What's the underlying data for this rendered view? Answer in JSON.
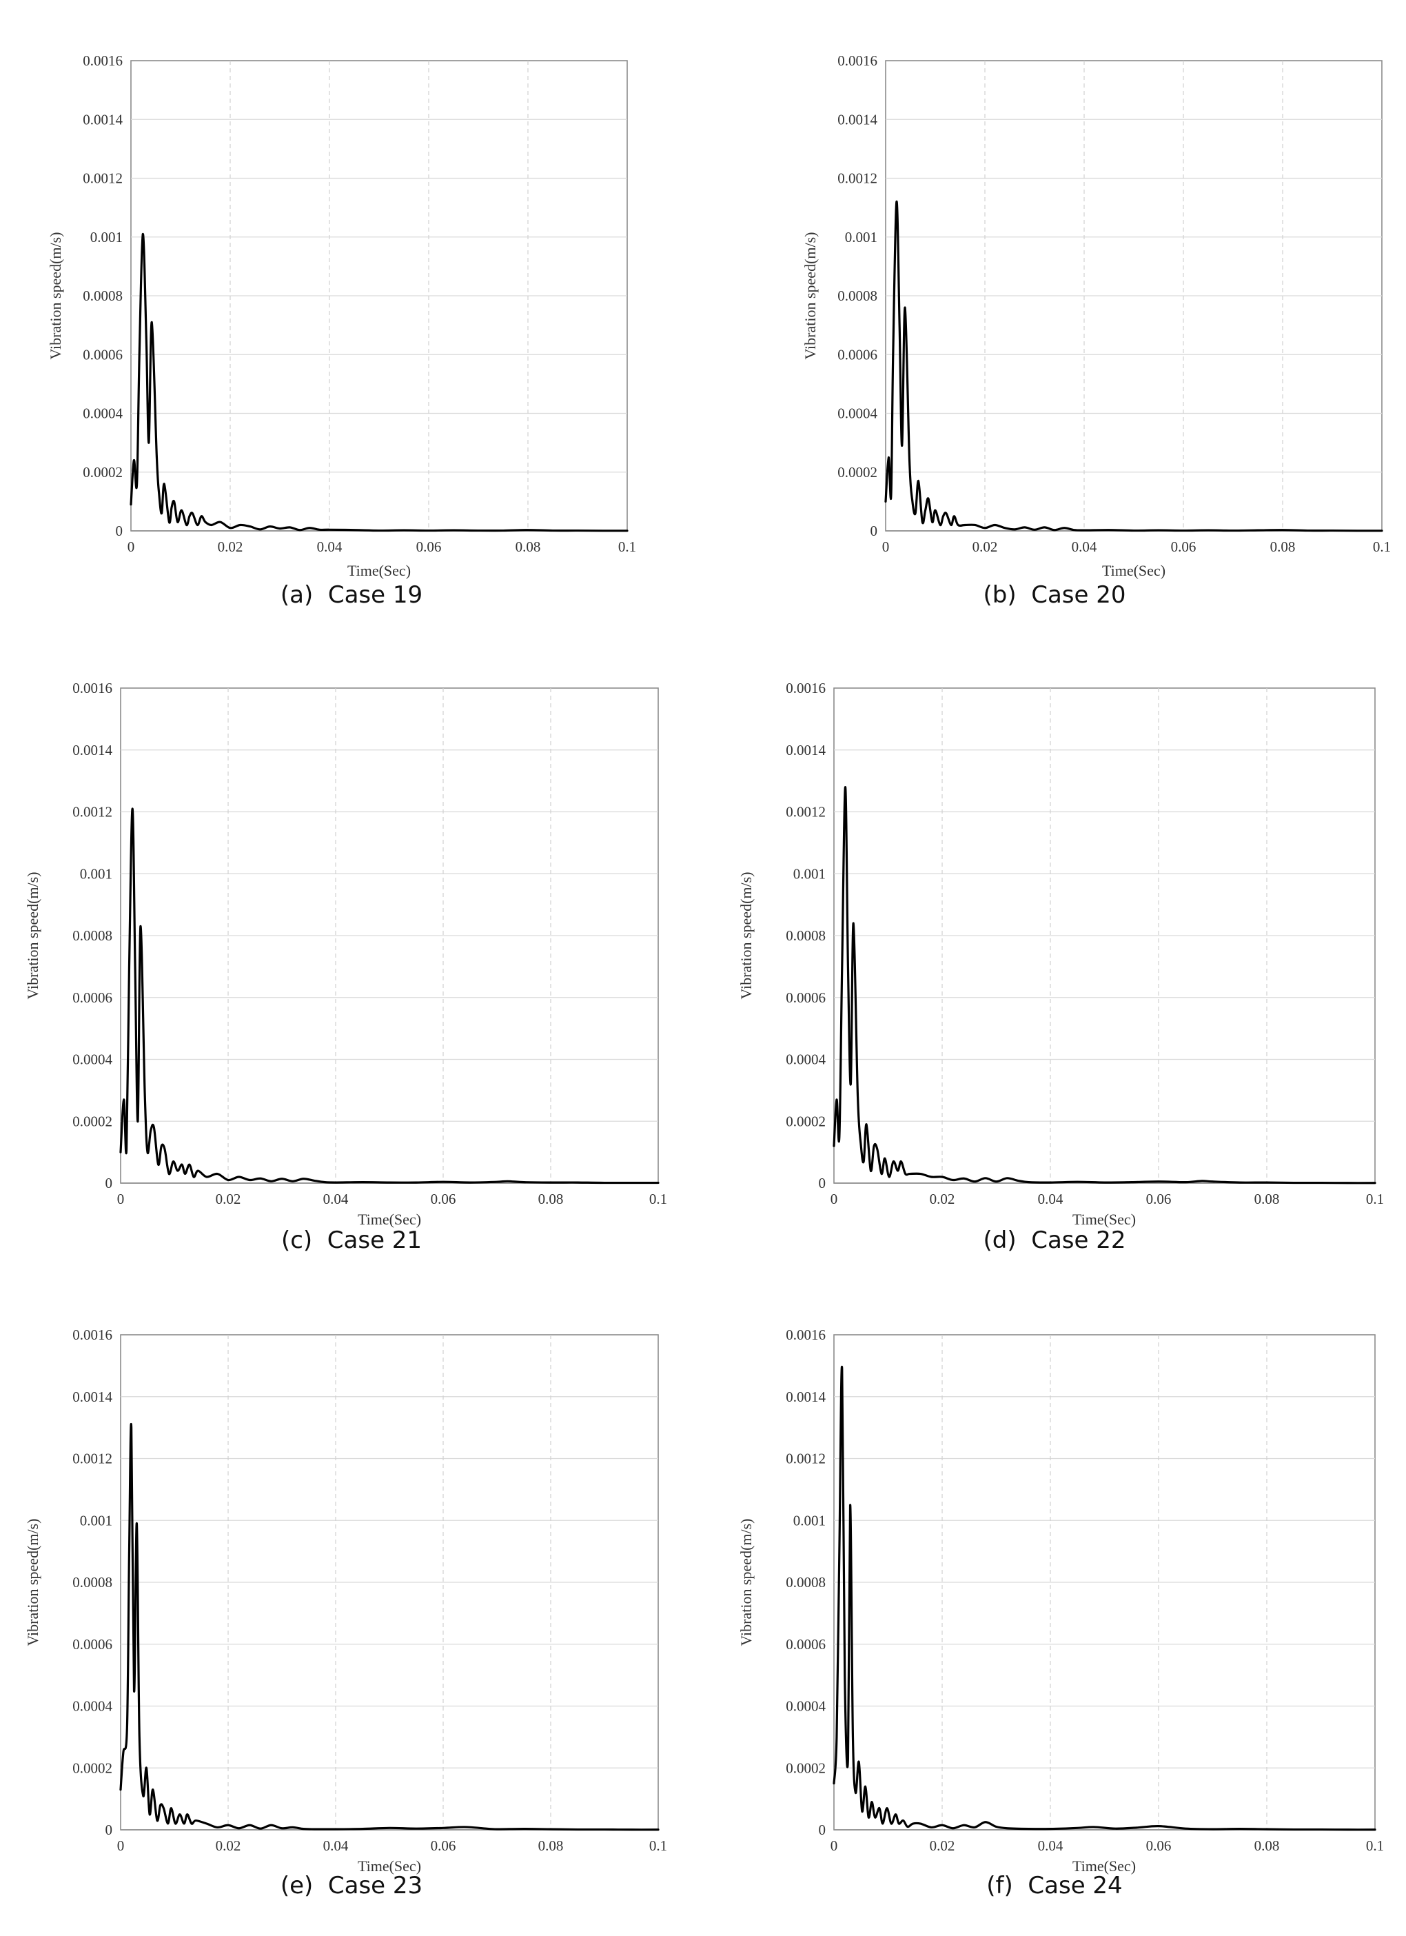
{
  "chart_data": [
    {
      "type": "line",
      "caption": "(a)  Case 19",
      "xlabel": "Time(Sec)",
      "ylabel": "Vibration speed(m/s)",
      "xlim": [
        0,
        0.1
      ],
      "ylim": [
        0,
        0.0016
      ],
      "x_ticks": [
        "0",
        "0.02",
        "0.04",
        "0.06",
        "0.08",
        "0.1"
      ],
      "y_ticks": [
        "0",
        "0.0002",
        "0.0004",
        "0.0006",
        "0.0008",
        "0.001",
        "0.0012",
        "0.0014",
        "0.0016"
      ],
      "grid": true,
      "series": [
        {
          "color": "#000000",
          "x": [
            0,
            0.0006,
            0.0012,
            0.0017,
            0.0024,
            0.0031,
            0.0036,
            0.0042,
            0.0052,
            0.0057,
            0.0062,
            0.0067,
            0.0077,
            0.0082,
            0.0087,
            0.0094,
            0.0102,
            0.0112,
            0.0118,
            0.0124,
            0.0134,
            0.0142,
            0.015,
            0.0162,
            0.018,
            0.02,
            0.022,
            0.024,
            0.026,
            0.028,
            0.03,
            0.032,
            0.034,
            0.036,
            0.038,
            0.04,
            0.045,
            0.05,
            0.055,
            0.06,
            0.065,
            0.07,
            0.075,
            0.08,
            0.085,
            0.09,
            0.095,
            0.1
          ],
          "y": [
            9e-05,
            0.00024,
            0.00016,
            0.0006,
            0.00101,
            0.00065,
            0.0003,
            0.00071,
            0.00025,
            0.00012,
            6e-05,
            0.00016,
            3e-05,
            8e-05,
            0.0001,
            3e-05,
            7e-05,
            2e-05,
            5e-05,
            6e-05,
            2e-05,
            5e-05,
            3e-05,
            2e-05,
            3e-05,
            1e-05,
            2e-05,
            1.5e-05,
            5e-06,
            1.5e-05,
            8e-06,
            1.2e-05,
            3e-06,
            1e-05,
            4e-06,
            4e-06,
            3e-06,
            1e-06,
            2e-06,
            1e-06,
            2e-06,
            1e-06,
            1e-06,
            3e-06,
            1e-06,
            1e-06,
            5e-07,
            5e-07
          ]
        }
      ]
    },
    {
      "type": "line",
      "caption": "(b)  Case 20",
      "xlabel": "Time(Sec)",
      "ylabel": "Vibration speed(m/s)",
      "xlim": [
        0,
        0.1
      ],
      "ylim": [
        0,
        0.0016
      ],
      "x_ticks": [
        "0",
        "0.02",
        "0.04",
        "0.06",
        "0.08",
        "0.1"
      ],
      "y_ticks": [
        "0",
        "0.0002",
        "0.0004",
        "0.0006",
        "0.0008",
        "0.001",
        "0.0012",
        "0.0014",
        "0.0016"
      ],
      "grid": true,
      "series": [
        {
          "color": "#000000",
          "x": [
            0,
            0.0006,
            0.0011,
            0.0015,
            0.0022,
            0.0028,
            0.0033,
            0.0039,
            0.0048,
            0.0054,
            0.006,
            0.0066,
            0.0074,
            0.008,
            0.0086,
            0.0094,
            0.01,
            0.011,
            0.0116,
            0.0122,
            0.0132,
            0.0138,
            0.0146,
            0.016,
            0.018,
            0.02,
            0.022,
            0.024,
            0.026,
            0.028,
            0.03,
            0.032,
            0.034,
            0.036,
            0.038,
            0.04,
            0.045,
            0.05,
            0.055,
            0.06,
            0.065,
            0.07,
            0.075,
            0.08,
            0.085,
            0.09,
            0.095,
            0.1
          ],
          "y": [
            0.0001,
            0.00025,
            0.00012,
            0.0006,
            0.00112,
            0.0007,
            0.00029,
            0.00076,
            0.00024,
            0.0001,
            6e-05,
            0.00017,
            3e-05,
            7e-05,
            0.00011,
            3e-05,
            7e-05,
            2e-05,
            5e-05,
            6e-05,
            2e-05,
            5e-05,
            2e-05,
            2e-05,
            2e-05,
            1e-05,
            2e-05,
            1e-05,
            5e-06,
            1.2e-05,
            4e-06,
            1.2e-05,
            3e-06,
            1e-05,
            3e-06,
            2e-06,
            3e-06,
            1e-06,
            2e-06,
            1e-06,
            2e-06,
            1e-06,
            2e-06,
            3e-06,
            1e-06,
            1e-06,
            5e-07,
            5e-07
          ]
        }
      ]
    },
    {
      "type": "line",
      "caption": "(c)  Case 21",
      "xlabel": "Time(Sec)",
      "ylabel": "Vibration speed(m/s)",
      "xlim": [
        0,
        0.1
      ],
      "ylim": [
        0,
        0.0016
      ],
      "x_ticks": [
        "0",
        "0.02",
        "0.04",
        "0.06",
        "0.08",
        "0.1"
      ],
      "y_ticks": [
        "0",
        "0.0002",
        "0.0004",
        "0.0006",
        "0.0008",
        "0.001",
        "0.0012",
        "0.0014",
        "0.0016"
      ],
      "grid": true,
      "series": [
        {
          "color": "#000000",
          "x": [
            0,
            0.0006,
            0.0011,
            0.0016,
            0.0022,
            0.0027,
            0.0032,
            0.0037,
            0.0045,
            0.005,
            0.0056,
            0.0062,
            0.007,
            0.0076,
            0.0082,
            0.009,
            0.0098,
            0.0106,
            0.0114,
            0.012,
            0.0128,
            0.0136,
            0.0144,
            0.016,
            0.018,
            0.02,
            0.022,
            0.024,
            0.026,
            0.028,
            0.03,
            0.032,
            0.034,
            0.036,
            0.038,
            0.04,
            0.045,
            0.05,
            0.055,
            0.06,
            0.065,
            0.07,
            0.072,
            0.075,
            0.08,
            0.085,
            0.09,
            0.1
          ],
          "y": [
            0.0001,
            0.00027,
            0.00011,
            0.0007,
            0.00121,
            0.0007,
            0.0002,
            0.00083,
            0.00029,
            0.0001,
            0.00017,
            0.00018,
            6e-05,
            0.00012,
            0.00011,
            3e-05,
            7e-05,
            4e-05,
            6e-05,
            3e-05,
            6e-05,
            2e-05,
            4e-05,
            2e-05,
            3e-05,
            1e-05,
            2e-05,
            1e-05,
            1.5e-05,
            6e-06,
            1.4e-05,
            6e-06,
            1.4e-05,
            8e-06,
            3e-06,
            2e-06,
            3e-06,
            2e-06,
            2e-06,
            4e-06,
            2e-06,
            4e-06,
            6e-06,
            3e-06,
            2e-06,
            2e-06,
            1e-06,
            1e-06
          ]
        }
      ]
    },
    {
      "type": "line",
      "caption": "(d)  Case 22",
      "xlabel": "Time(Sec)",
      "ylabel": "Vibration speed(m/s)",
      "xlim": [
        0,
        0.1
      ],
      "ylim": [
        0,
        0.0016
      ],
      "x_ticks": [
        "0",
        "0.02",
        "0.04",
        "0.06",
        "0.08",
        "0.1"
      ],
      "y_ticks": [
        "0",
        "0.0002",
        "0.0004",
        "0.0006",
        "0.0008",
        "0.001",
        "0.0012",
        "0.0014",
        "0.0016"
      ],
      "grid": true,
      "series": [
        {
          "color": "#000000",
          "x": [
            0,
            0.0005,
            0.001,
            0.0015,
            0.0021,
            0.0026,
            0.0031,
            0.0036,
            0.0044,
            0.005,
            0.0055,
            0.006,
            0.0068,
            0.0074,
            0.008,
            0.0088,
            0.0094,
            0.0102,
            0.011,
            0.0118,
            0.0124,
            0.0132,
            0.014,
            0.016,
            0.018,
            0.02,
            0.022,
            0.024,
            0.026,
            0.028,
            0.03,
            0.032,
            0.034,
            0.036,
            0.04,
            0.045,
            0.05,
            0.055,
            0.06,
            0.065,
            0.068,
            0.07,
            0.075,
            0.08,
            0.085,
            0.09,
            0.095,
            0.1
          ],
          "y": [
            0.00012,
            0.00027,
            0.00015,
            0.0007,
            0.00128,
            0.0007,
            0.00032,
            0.00084,
            0.00028,
            0.00012,
            7e-05,
            0.00019,
            4e-05,
            0.00012,
            0.00011,
            3e-05,
            8e-05,
            2e-05,
            7e-05,
            4e-05,
            7e-05,
            3e-05,
            3e-05,
            3e-05,
            2e-05,
            2e-05,
            1e-05,
            1.5e-05,
            5e-06,
            1.6e-05,
            5e-06,
            1.6e-05,
            8e-06,
            3e-06,
            2e-06,
            4e-06,
            2e-06,
            3e-06,
            5e-06,
            3e-06,
            7e-06,
            5e-06,
            2e-06,
            2e-06,
            1e-06,
            1e-06,
            5e-07,
            5e-07
          ]
        }
      ]
    },
    {
      "type": "line",
      "caption": "(e)  Case 23",
      "xlabel": "Time(Sec)",
      "ylabel": "Vibration speed(m/s)",
      "xlim": [
        0,
        0.1
      ],
      "ylim": [
        0,
        0.0016
      ],
      "x_ticks": [
        "0",
        "0.02",
        "0.04",
        "0.06",
        "0.08",
        "0.1"
      ],
      "y_ticks": [
        "0",
        "0.0002",
        "0.0004",
        "0.0006",
        "0.0008",
        "0.001",
        "0.0012",
        "0.0014",
        "0.0016"
      ],
      "grid": true,
      "series": [
        {
          "color": "#000000",
          "x": [
            0,
            0.0005,
            0.0012,
            0.0016,
            0.002,
            0.0025,
            0.003,
            0.0035,
            0.0042,
            0.0048,
            0.0054,
            0.006,
            0.0068,
            0.0074,
            0.008,
            0.0088,
            0.0094,
            0.0102,
            0.011,
            0.0118,
            0.0124,
            0.0132,
            0.014,
            0.016,
            0.018,
            0.02,
            0.022,
            0.024,
            0.026,
            0.028,
            0.03,
            0.032,
            0.034,
            0.036,
            0.04,
            0.045,
            0.05,
            0.055,
            0.06,
            0.064,
            0.068,
            0.07,
            0.075,
            0.08,
            0.085,
            0.09,
            0.095,
            0.1
          ],
          "y": [
            0.00013,
            0.00025,
            0.00033,
            0.0009,
            0.0013,
            0.00045,
            0.00099,
            0.0003,
            0.00011,
            0.0002,
            5e-05,
            0.00013,
            3e-05,
            8e-05,
            7e-05,
            2e-05,
            7e-05,
            2e-05,
            5e-05,
            2e-05,
            5e-05,
            2e-05,
            3e-05,
            2e-05,
            8e-06,
            1.5e-05,
            5e-06,
            1.5e-05,
            4e-06,
            1.5e-05,
            5e-06,
            8e-06,
            3e-06,
            2e-06,
            2e-06,
            3e-06,
            6e-06,
            4e-06,
            6e-06,
            9e-06,
            4e-06,
            2e-06,
            3e-06,
            2e-06,
            1e-06,
            1e-06,
            5e-07,
            5e-07
          ]
        }
      ]
    },
    {
      "type": "line",
      "caption": "(f)  Case 24",
      "xlabel": "Time(Sec)",
      "ylabel": "Vibration speed(m/s)",
      "xlim": [
        0,
        0.1
      ],
      "ylim": [
        0,
        0.0016
      ],
      "x_ticks": [
        "0",
        "0.02",
        "0.04",
        "0.06",
        "0.08",
        "0.1"
      ],
      "y_ticks": [
        "0",
        "0.0002",
        "0.0004",
        "0.0006",
        "0.0008",
        "0.001",
        "0.0012",
        "0.0014",
        "0.0016"
      ],
      "grid": true,
      "series": [
        {
          "color": "#000000",
          "x": [
            0,
            0.0005,
            0.001,
            0.0015,
            0.002,
            0.0026,
            0.003,
            0.0035,
            0.004,
            0.0046,
            0.0052,
            0.0058,
            0.0064,
            0.007,
            0.0076,
            0.0084,
            0.009,
            0.0098,
            0.0106,
            0.0114,
            0.012,
            0.0128,
            0.0136,
            0.0146,
            0.016,
            0.018,
            0.02,
            0.022,
            0.024,
            0.026,
            0.028,
            0.03,
            0.032,
            0.036,
            0.04,
            0.045,
            0.048,
            0.052,
            0.056,
            0.06,
            0.065,
            0.07,
            0.075,
            0.08,
            0.085,
            0.09,
            0.095,
            0.1
          ],
          "y": [
            0.00015,
            0.0003,
            0.0009,
            0.00149,
            0.0005,
            0.00023,
            0.00105,
            0.0003,
            0.00012,
            0.00022,
            6e-05,
            0.00014,
            4e-05,
            9e-05,
            4e-05,
            7e-05,
            2e-05,
            7e-05,
            2e-05,
            5e-05,
            2e-05,
            3e-05,
            1e-05,
            2e-05,
            2e-05,
            8e-06,
            1.5e-05,
            5e-06,
            1.5e-05,
            8e-06,
            2.5e-05,
            1e-05,
            5e-06,
            3e-06,
            3e-06,
            6e-06,
            9e-06,
            4e-06,
            7e-06,
            1.2e-05,
            4e-06,
            2e-06,
            3e-06,
            2e-06,
            1e-06,
            1e-06,
            5e-07,
            5e-07
          ]
        }
      ]
    }
  ]
}
